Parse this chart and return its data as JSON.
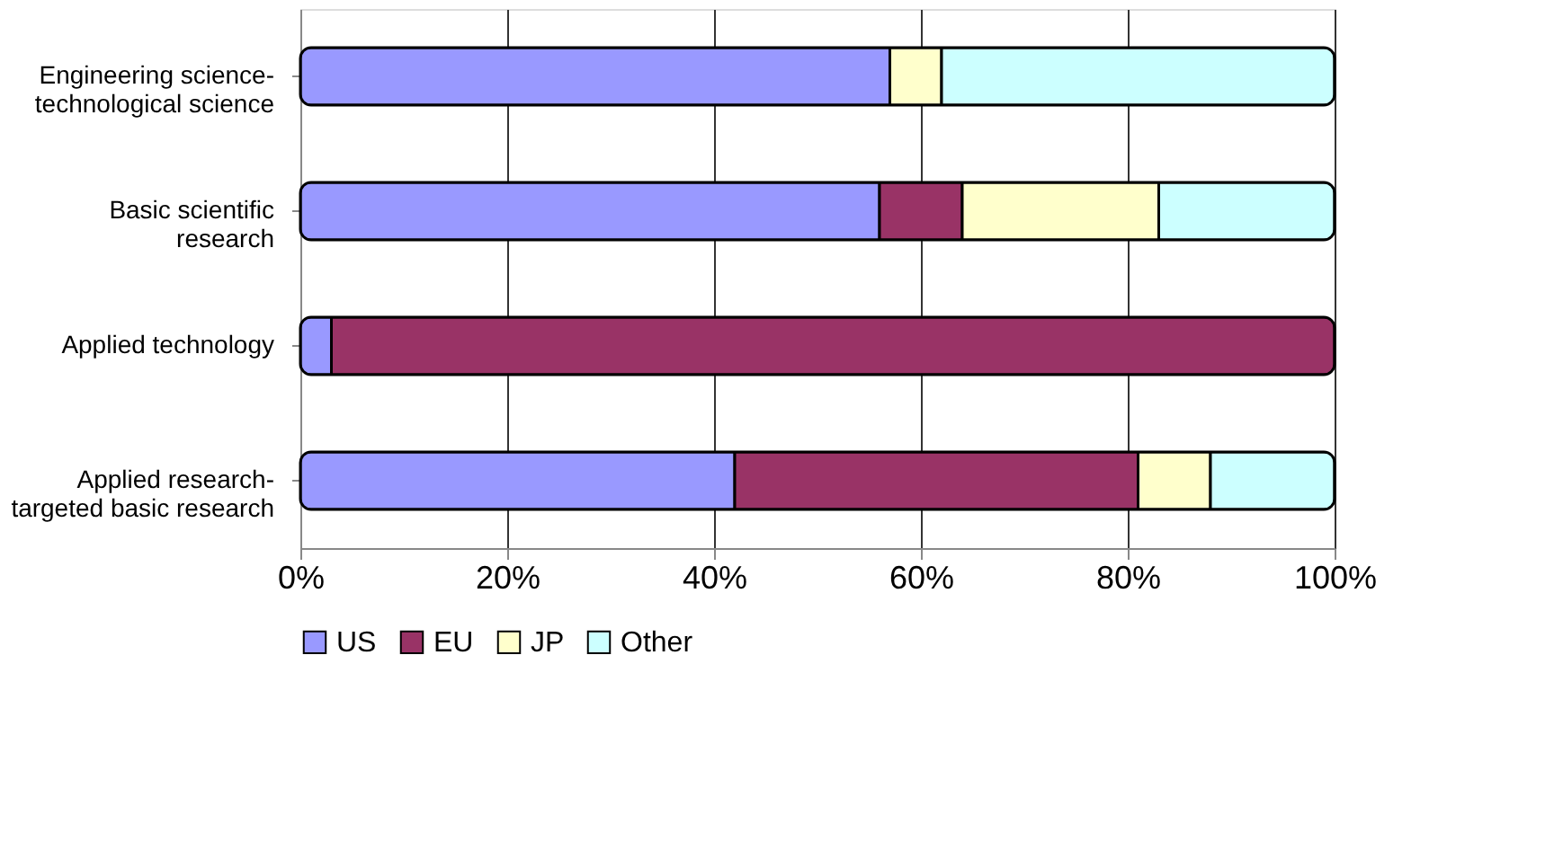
{
  "chart_data": {
    "type": "bar",
    "orientation": "horizontal",
    "stacked": true,
    "categories": [
      "Engineering science-\ntechnological science",
      "Basic scientific\nresearch",
      "Applied technology",
      "Applied research-\ntargeted basic research"
    ],
    "series": [
      {
        "name": "US",
        "color": "#9999ff",
        "values": [
          57,
          56,
          3,
          42
        ]
      },
      {
        "name": "EU",
        "color": "#993366",
        "values": [
          0,
          8,
          97,
          39
        ]
      },
      {
        "name": "JP",
        "color": "#ffffcc",
        "values": [
          5,
          19,
          0,
          7
        ]
      },
      {
        "name": "Other",
        "color": "#ccffff",
        "values": [
          38,
          17,
          0,
          12
        ]
      }
    ],
    "xlim": [
      0,
      100
    ],
    "xticks": [
      {
        "value": 0,
        "label": "0%"
      },
      {
        "value": 20,
        "label": "20%"
      },
      {
        "value": 40,
        "label": "40%"
      },
      {
        "value": 60,
        "label": "60%"
      },
      {
        "value": 80,
        "label": "80%"
      },
      {
        "value": 100,
        "label": "100%"
      }
    ],
    "grid": "x",
    "legend": "bottom"
  }
}
